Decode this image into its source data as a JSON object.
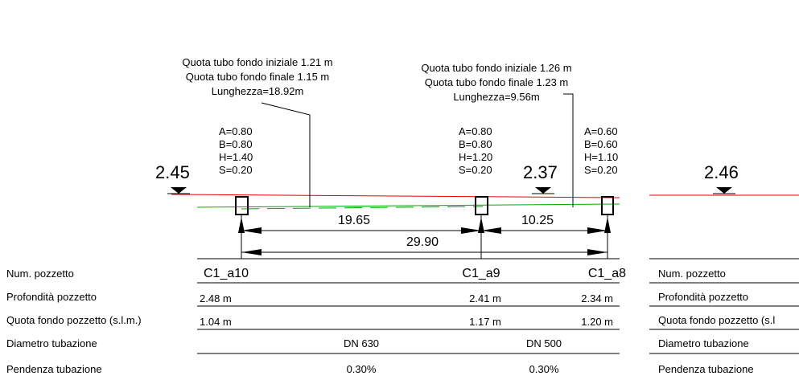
{
  "pipes": [
    {
      "lines": [
        "Quota tubo fondo iniziale 1.21 m",
        "Quota tubo fondo finale 1.15 m",
        "Lunghezza=18.92m"
      ]
    },
    {
      "lines": [
        "Quota tubo fondo iniziale 1.26 m",
        "Quota tubo fondo finale 1.23 m",
        "Lunghezza=9.56m"
      ]
    }
  ],
  "wells": [
    {
      "lines": [
        "A=0.80",
        "B=0.80",
        "H=1.40",
        "S=0.20"
      ]
    },
    {
      "lines": [
        "A=0.80",
        "B=0.80",
        "H=1.20",
        "S=0.20"
      ]
    },
    {
      "lines": [
        "A=0.60",
        "B=0.60",
        "H=1.10",
        "S=0.20"
      ]
    }
  ],
  "elevations": [
    "2.45",
    "2.37",
    "2.46"
  ],
  "dimensions": [
    "19.65",
    "10.25",
    "29.90"
  ],
  "table": {
    "labels": [
      "Num. pozzetto",
      "Profondità pozzetto",
      "Quota fondo pozzetto (s.l.m.)",
      "Diametro tubazione",
      "Pendenza tubazione"
    ],
    "right_labels": [
      "Num. pozzetto",
      "Profondità pozzetto",
      "Quota fondo pozzetto (s.l",
      "Diametro tubazione",
      "Pendenza tubazione"
    ],
    "names": [
      "C1_a10",
      "C1_a9",
      "C1_a8"
    ],
    "depths": [
      "2.48 m",
      "2.41 m",
      "2.34 m"
    ],
    "bottoms": [
      "1.04 m",
      "1.17 m",
      "1.20 m"
    ],
    "diameters": [
      "DN 630",
      "DN 500"
    ],
    "slopes": [
      "0.30%",
      "0.30%"
    ]
  }
}
